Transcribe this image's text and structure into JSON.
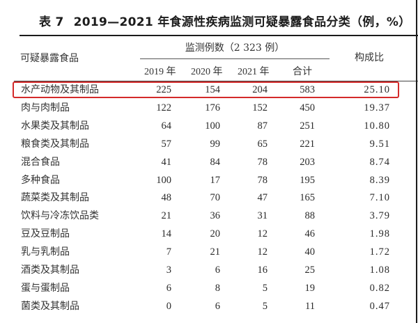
{
  "title": {
    "table_no": "表 7",
    "text": "2019—2021 年食源性疾病监测可疑暴露食品分类（例，%）"
  },
  "header": {
    "food_column": "可疑暴露食品",
    "group_label": "监测例数（2 323 例）",
    "years": [
      "2019 年",
      "2020 年",
      "2021 年"
    ],
    "total": "合计",
    "ratio": "构成比"
  },
  "highlight": {
    "row_index": 0,
    "color": "#d42a2a"
  },
  "rows": [
    {
      "food": "水产动物及其制品",
      "y2019": "225",
      "y2020": "154",
      "y2021": "204",
      "total": "583",
      "ratio": "25.10"
    },
    {
      "food": "肉与肉制品",
      "y2019": "122",
      "y2020": "176",
      "y2021": "152",
      "total": "450",
      "ratio": "19.37"
    },
    {
      "food": "水果类及其制品",
      "y2019": "64",
      "y2020": "100",
      "y2021": "87",
      "total": "251",
      "ratio": "10.80"
    },
    {
      "food": "粮食类及其制品",
      "y2019": "57",
      "y2020": "99",
      "y2021": "65",
      "total": "221",
      "ratio": "9.51"
    },
    {
      "food": "混合食品",
      "y2019": "41",
      "y2020": "84",
      "y2021": "78",
      "total": "203",
      "ratio": "8.74"
    },
    {
      "food": "多种食品",
      "y2019": "100",
      "y2020": "17",
      "y2021": "78",
      "total": "195",
      "ratio": "8.39"
    },
    {
      "food": "蔬菜类及其制品",
      "y2019": "48",
      "y2020": "70",
      "y2021": "47",
      "total": "165",
      "ratio": "7.10"
    },
    {
      "food": "饮料与冷冻饮品类",
      "y2019": "21",
      "y2020": "36",
      "y2021": "31",
      "total": "88",
      "ratio": "3.79"
    },
    {
      "food": "豆及豆制品",
      "y2019": "14",
      "y2020": "20",
      "y2021": "12",
      "total": "46",
      "ratio": "1.98"
    },
    {
      "food": "乳与乳制品",
      "y2019": "7",
      "y2020": "21",
      "y2021": "12",
      "total": "40",
      "ratio": "1.72"
    },
    {
      "food": "酒类及其制品",
      "y2019": "3",
      "y2020": "6",
      "y2021": "16",
      "total": "25",
      "ratio": "1.08"
    },
    {
      "food": "蛋与蛋制品",
      "y2019": "6",
      "y2020": "8",
      "y2021": "5",
      "total": "19",
      "ratio": "0.82"
    },
    {
      "food": "菌类及其制品",
      "y2019": "0",
      "y2020": "6",
      "y2021": "5",
      "total": "11",
      "ratio": "0.47"
    }
  ]
}
